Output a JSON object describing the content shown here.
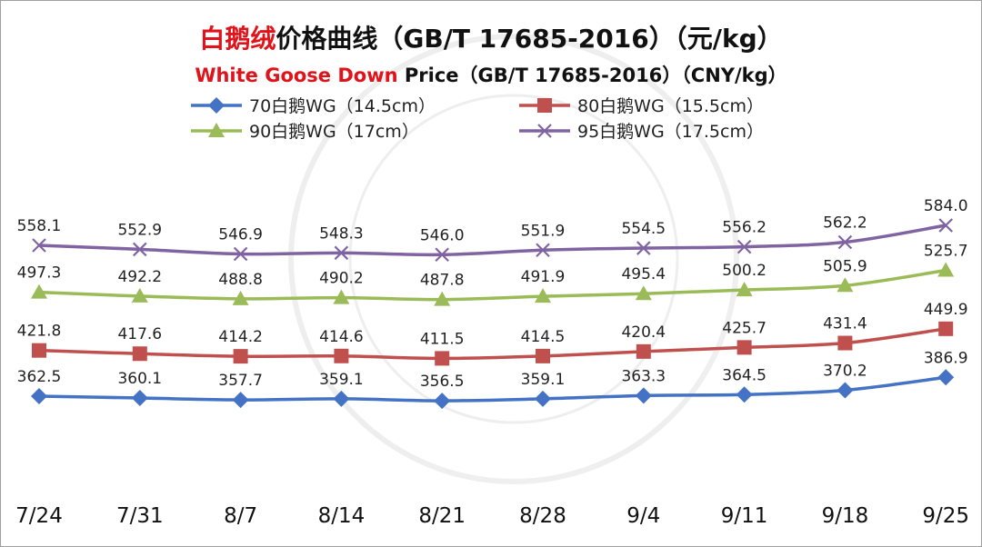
{
  "chart_data": {
    "type": "line",
    "title_cn_red": "白鹅绒",
    "title_cn_rest": "价格曲线（GB/T 17685-2016）（元/kg）",
    "title_en_red": "White Goose Down",
    "title_en_rest": " Price（GB/T 17685-2016）（CNY/kg）",
    "categories": [
      "7/24",
      "7/31",
      "8/7",
      "8/14",
      "8/21",
      "8/28",
      "9/4",
      "9/11",
      "9/18",
      "9/25"
    ],
    "ylim": [
      300,
      620
    ],
    "grid": false,
    "legend_position": "top",
    "series": [
      {
        "name": "70白鹅WG（14.5cm）",
        "color": "#4472c4",
        "marker": "diamond",
        "values": [
          362.5,
          360.1,
          357.7,
          359.1,
          356.5,
          359.1,
          363.3,
          364.5,
          370.2,
          386.9
        ]
      },
      {
        "name": "80白鹅WG（15.5cm）",
        "color": "#c0504d",
        "marker": "square",
        "values": [
          421.8,
          417.6,
          414.2,
          414.6,
          411.5,
          414.5,
          420.4,
          425.7,
          431.4,
          449.9
        ]
      },
      {
        "name": "90白鹅WG（17cm）",
        "color": "#9bbb59",
        "marker": "triangle",
        "values": [
          497.3,
          492.2,
          488.8,
          490.2,
          487.8,
          491.9,
          495.4,
          500.2,
          505.9,
          525.7
        ]
      },
      {
        "name": "95白鹅WG（17.5cm）",
        "color": "#8064a2",
        "marker": "x",
        "values": [
          558.1,
          552.9,
          546.9,
          548.3,
          546.0,
          551.9,
          554.5,
          556.2,
          562.2,
          584.0
        ]
      }
    ]
  }
}
